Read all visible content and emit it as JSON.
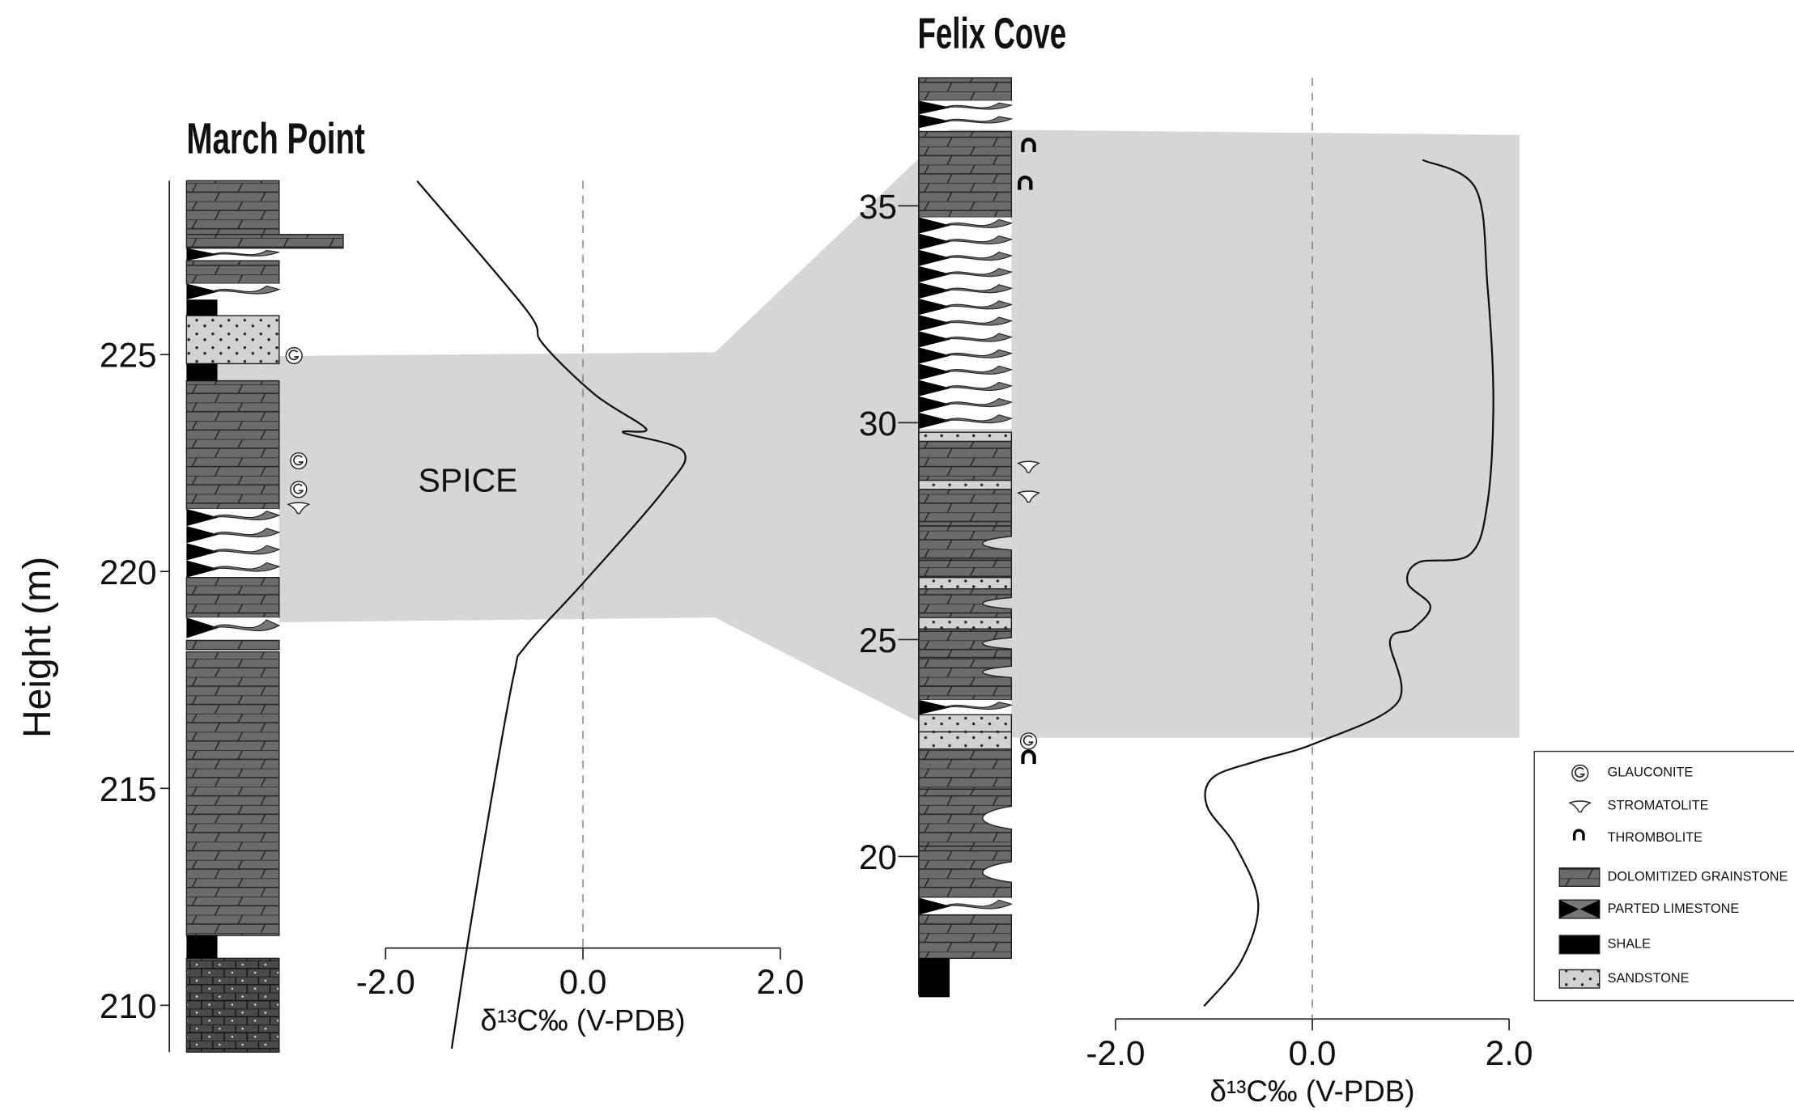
{
  "chart_data": [
    {
      "type": "line",
      "title": "March Point",
      "ylabel": "Height (m)",
      "xlabel": "δ¹³C‰ (V-PDB)",
      "annotation": "SPICE",
      "color": "#111111",
      "x": [
        -1.68,
        -0.58,
        -0.41,
        0.12,
        0.64,
        0.41,
        1.02,
        0.81,
        0.0,
        -0.58,
        -0.7,
        -0.93,
        -1.16,
        -1.33
      ],
      "y": [
        229.0,
        226.05,
        225.26,
        224.08,
        223.29,
        223.2,
        222.76,
        221.84,
        219.73,
        218.28,
        217.62,
        214.72,
        211.55,
        209.0
      ],
      "xlim": [
        -2,
        2
      ],
      "xticks": [
        {
          "value": -2,
          "label": "-2.0"
        },
        {
          "value": 0,
          "label": "0.0"
        },
        {
          "value": 2,
          "label": "2.0"
        }
      ],
      "ylim": [
        209,
        229
      ],
      "yticks": [
        210,
        215,
        220,
        225
      ]
    },
    {
      "type": "line",
      "title": "Felix Cove",
      "xlabel": "δ¹³C‰ (V-PDB)",
      "color": "#111111",
      "x": [
        1.12,
        1.66,
        1.78,
        1.84,
        1.78,
        1.6,
        1.08,
        0.97,
        1.2,
        1.02,
        0.79,
        0.87,
        0.03,
        -0.55,
        -1.01,
        -1.07,
        -0.78,
        -0.55,
        -0.72,
        -1.1
      ],
      "y": [
        36.06,
        35.4,
        33.16,
        30.52,
        28.15,
        26.96,
        26.78,
        26.3,
        25.77,
        25.25,
        24.98,
        23.56,
        22.61,
        22.21,
        21.82,
        21.16,
        20.24,
        18.92,
        17.6,
        16.55
      ],
      "xlim": [
        -2,
        2
      ],
      "xticks": [
        {
          "value": -2,
          "label": "-2.0"
        },
        {
          "value": 0,
          "label": "0.0"
        },
        {
          "value": 2,
          "label": "2.0"
        }
      ],
      "ylim": [
        16.5,
        38
      ],
      "yticks": [
        20,
        25,
        30,
        35
      ]
    }
  ],
  "legend": {
    "items": [
      "GLAUCONITE",
      "STROMATOLITE",
      "THROMBOLITE",
      "DOLOMITIZED GRAINSTONE",
      "PARTED LIMESTONE",
      "SHALE",
      "SANDSTONE"
    ]
  }
}
